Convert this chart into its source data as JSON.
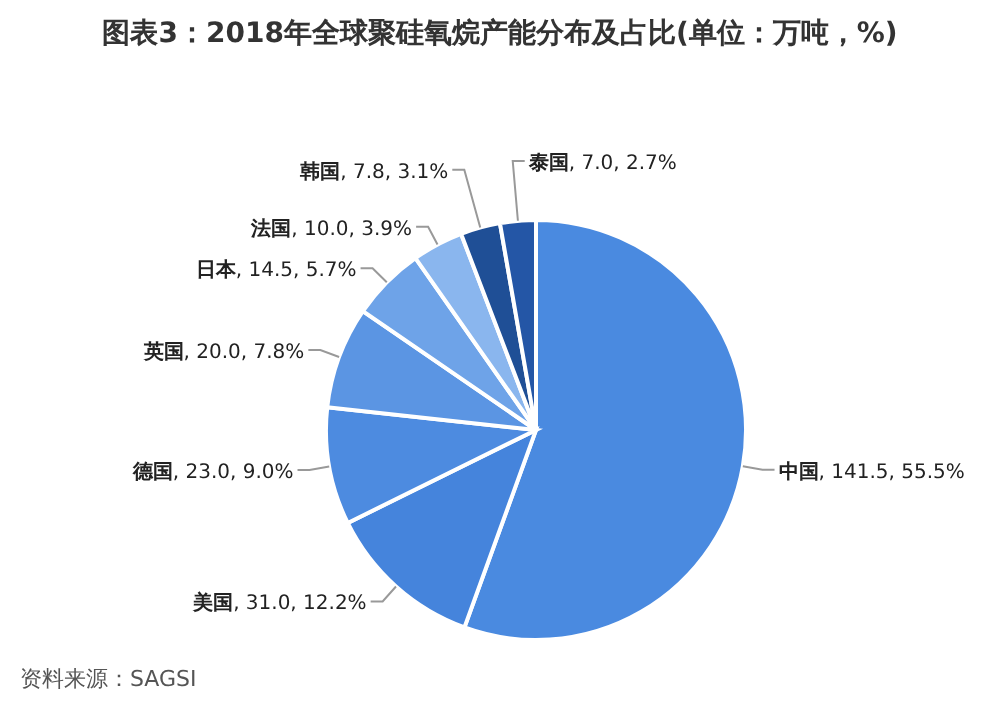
{
  "chart_data": {
    "type": "pie",
    "title": "图表3：2018年全球聚硅氧烷产能分布及占比(单位：万吨，%)",
    "categories": [
      "中国",
      "美国",
      "德国",
      "英国",
      "日本",
      "法国",
      "韩国",
      "泰国"
    ],
    "values": [
      141.5,
      31.0,
      23.0,
      20.0,
      14.5,
      10.0,
      7.8,
      7.0
    ],
    "value_labels": [
      ", 141.5, 55.5%",
      ", 31.0, 12.2%",
      ", 23.0, 9.0%",
      ", 20.0, 7.8%",
      ", 14.5, 5.7%",
      ", 10.0, 3.9%",
      ", 7.8, 3.1%",
      ", 7.0, 2.7%"
    ],
    "colors": [
      "#4a8ae0",
      "#4584dc",
      "#4d8be0",
      "#5b95e3",
      "#6ea3e8",
      "#8ab6ee",
      "#1f4f96",
      "#2456a6"
    ],
    "annotations": [
      "资料来源：SAGSI"
    ],
    "legend": false
  }
}
